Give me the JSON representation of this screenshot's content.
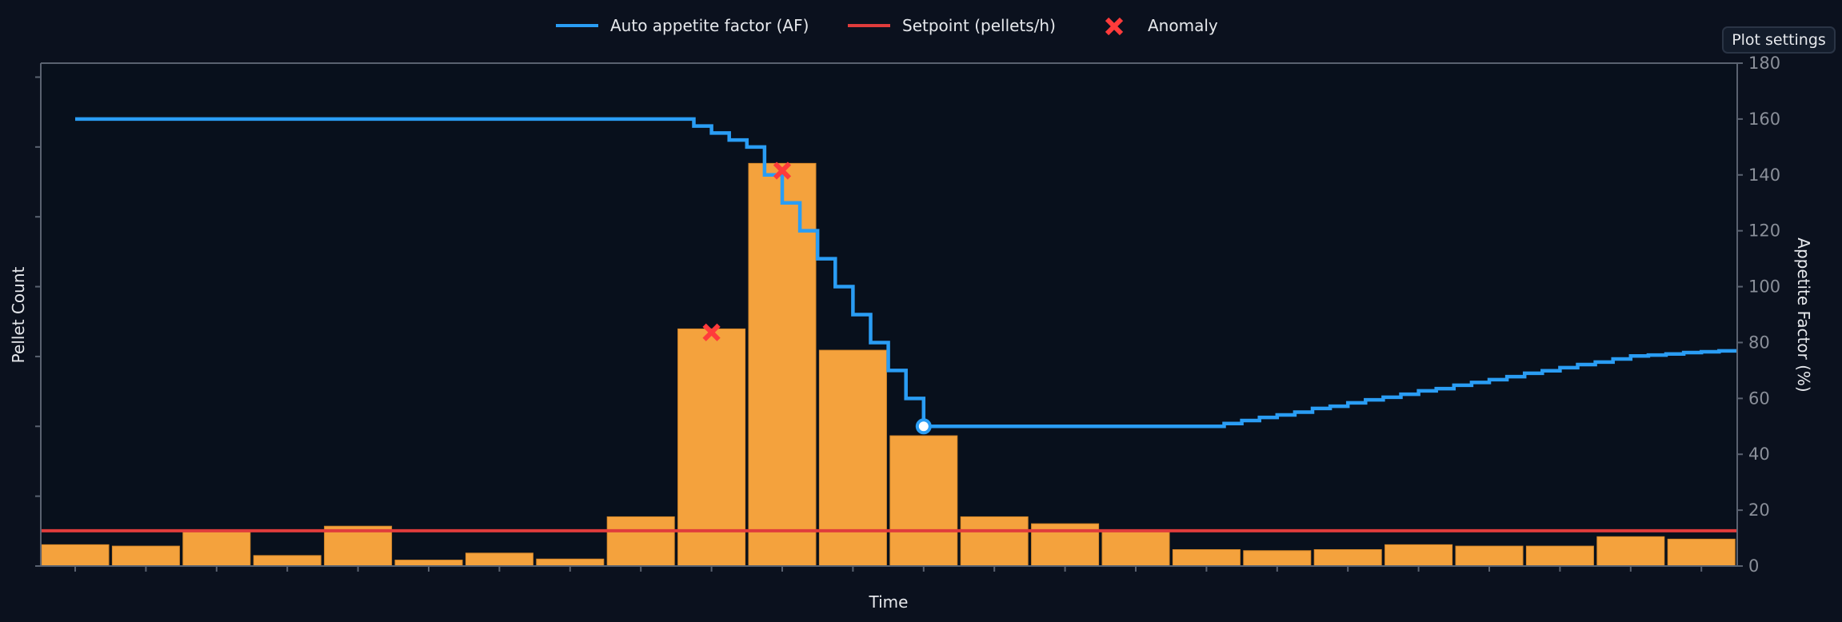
{
  "controls": {
    "plot_settings_label": "Plot settings"
  },
  "colors": {
    "background": "#0b111e",
    "plot_background": "#08101c",
    "bars": "#f4a23d",
    "af_line": "#2a9df4",
    "setpoint": "#e03c3c",
    "anomaly": "#ff3b3b",
    "axis": "#5a6270",
    "tick_text": "#8a8f99"
  },
  "chart_data": {
    "type": "bar+line",
    "xlabel": "Time",
    "ylabel_left": "Pellet Count",
    "ylabel_right": "Appetite Factor (%)",
    "x_tick_labels_shown": false,
    "left_ticks_labeled": false,
    "ylim_left": [
      0,
      144
    ],
    "left_ticks": [
      0,
      20,
      40,
      60,
      80,
      100,
      120,
      140
    ],
    "ylim_right": [
      0,
      180
    ],
    "right_ticks": [
      0,
      20,
      40,
      60,
      80,
      100,
      120,
      140,
      160,
      180
    ],
    "grid": false,
    "legend": {
      "placement": "top-center",
      "entries": [
        {
          "label": "Auto appetite factor (AF)",
          "kind": "line",
          "color": "#2a9df4"
        },
        {
          "label": "Setpoint (pellets/h)",
          "kind": "line",
          "color": "#e03c3c"
        },
        {
          "label": "Anomaly",
          "kind": "x-marker",
          "color": "#ff3b3b"
        }
      ]
    },
    "bars": {
      "axis": "left",
      "x": [
        0,
        1,
        2,
        3,
        4,
        5,
        6,
        7,
        8,
        9,
        10,
        11,
        12,
        13,
        14,
        15,
        16,
        17,
        18,
        19,
        20,
        21,
        22,
        23
      ],
      "values": [
        6.1,
        5.7,
        10.1,
        3.0,
        11.4,
        1.7,
        3.7,
        2.0,
        14.1,
        67.9,
        115.3,
        61.8,
        37.3,
        14.1,
        12.1,
        10.1,
        4.7,
        4.4,
        4.7,
        6.1,
        5.7,
        5.7,
        8.4,
        7.7
      ]
    },
    "setpoint": {
      "axis": "left",
      "value": 10.1
    },
    "af_series": {
      "axis": "right",
      "step": "post",
      "x": [
        0,
        8.75,
        9,
        9.25,
        9.5,
        9.75,
        10,
        10.25,
        10.5,
        10.75,
        11,
        11.25,
        11.5,
        11.75,
        12,
        16.25,
        16.5,
        16.75,
        17,
        17.25,
        17.5,
        17.75,
        18,
        18.25,
        18.5,
        18.75,
        19,
        19.25,
        19.5,
        19.75,
        20,
        20.25,
        20.5,
        20.75,
        21,
        21.25,
        21.5,
        21.75,
        22,
        22.25,
        22.5,
        22.75,
        23,
        23.25,
        23.5
      ],
      "values": [
        160,
        157.5,
        155,
        152.5,
        150,
        140,
        130,
        120,
        110,
        100,
        90,
        80,
        70,
        60,
        50,
        51.0,
        52.1,
        53.2,
        54.1,
        55.1,
        56.4,
        57.2,
        58.4,
        59.5,
        60.4,
        61.5,
        62.7,
        63.5,
        64.7,
        65.7,
        66.7,
        67.8,
        69.0,
        69.9,
        71.0,
        72.1,
        73.0,
        74.1,
        75.2,
        75.5,
        75.9,
        76.4,
        76.7,
        77.0,
        77.0
      ]
    },
    "current_point": {
      "axis": "right",
      "x": 12,
      "value": 50
    },
    "anomalies": {
      "axis": "left",
      "x": [
        9,
        10
      ],
      "values": [
        66.9,
        113.2
      ]
    }
  }
}
